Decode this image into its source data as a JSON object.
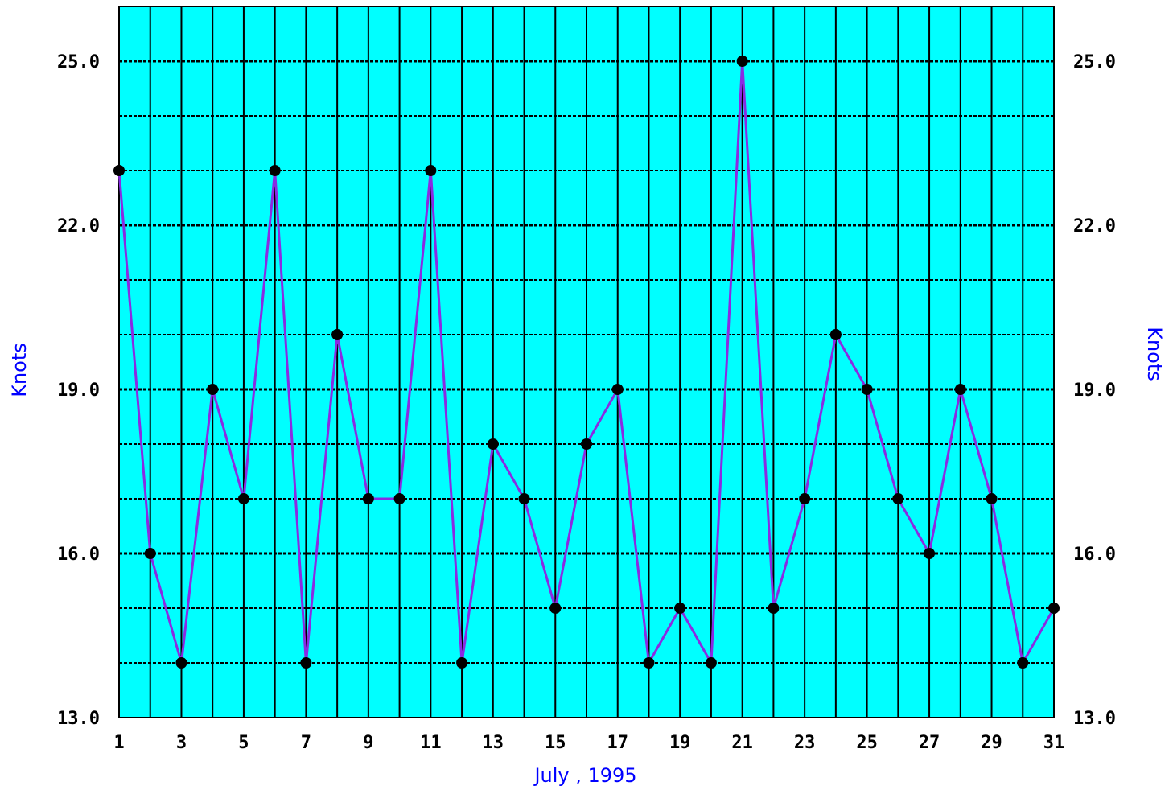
{
  "chart_data": {
    "type": "line",
    "xlabel": "July , 1995",
    "ylabel_left": "Knots",
    "ylabel_right": "Knots",
    "xlim": [
      1,
      31
    ],
    "ylim": [
      13,
      26
    ],
    "x_ticks": [
      1,
      3,
      5,
      7,
      9,
      11,
      13,
      15,
      17,
      19,
      21,
      23,
      25,
      27,
      29,
      31
    ],
    "y_ticks": [
      "13.0",
      "16.0",
      "19.0",
      "22.0",
      "25.0"
    ],
    "y_tick_values": [
      13,
      16,
      19,
      22,
      25
    ],
    "grid": true,
    "series": [
      {
        "x": [
          1,
          2,
          3,
          4,
          5,
          6,
          7,
          8,
          9,
          10,
          11,
          12,
          13,
          14,
          15,
          16,
          17,
          18,
          19,
          20,
          21,
          22,
          23,
          24,
          25,
          26,
          27,
          28,
          29,
          30,
          31
        ],
        "values": [
          23,
          16,
          14,
          19,
          17,
          23,
          14,
          20,
          17,
          17,
          23,
          14,
          18,
          17,
          15,
          18,
          19,
          14,
          15,
          14,
          25,
          15,
          17,
          20,
          19,
          17,
          16,
          19,
          17,
          14,
          15
        ]
      }
    ],
    "colors": {
      "plot_background": "#00ffff",
      "line": "#8a2be2",
      "marker": "#000000",
      "axis_label": "#0000ff",
      "grid": "#000000"
    }
  }
}
